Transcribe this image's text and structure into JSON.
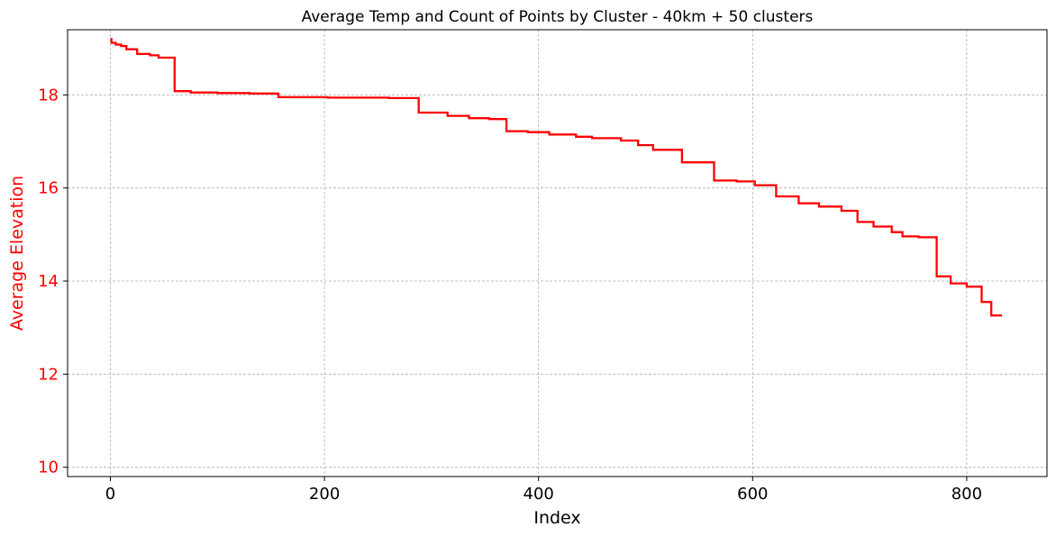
{
  "chart_data": {
    "type": "line",
    "title": "Average Temp and Count of Points by Cluster - 40km + 50 clusters",
    "xlabel": "Index",
    "ylabel": "Average Elevation",
    "xlim": [
      -40,
      875
    ],
    "ylim": [
      9.8,
      19.4
    ],
    "xticks": [
      0,
      200,
      400,
      600,
      800
    ],
    "yticks": [
      10,
      12,
      14,
      16,
      18
    ],
    "xtick_labels": [
      "0",
      "200",
      "400",
      "600",
      "800"
    ],
    "ytick_labels": [
      "10",
      "12",
      "14",
      "16",
      "18"
    ],
    "grid": true,
    "line_color": "#ff0000",
    "ylabel_color": "#ff0000",
    "ytick_color": "#ff0000",
    "series": [
      {
        "steps": [
          [
            0,
            19.2
          ],
          [
            1,
            19.12
          ],
          [
            5,
            19.08
          ],
          [
            10,
            19.05
          ],
          [
            15,
            18.98
          ],
          [
            25,
            18.88
          ],
          [
            37,
            18.85
          ],
          [
            45,
            18.8
          ],
          [
            60,
            18.08
          ],
          [
            75,
            18.05
          ],
          [
            100,
            18.04
          ],
          [
            130,
            18.03
          ],
          [
            157,
            17.95
          ],
          [
            203,
            17.94
          ],
          [
            260,
            17.93
          ],
          [
            288,
            17.62
          ],
          [
            315,
            17.55
          ],
          [
            335,
            17.5
          ],
          [
            354,
            17.48
          ],
          [
            370,
            17.22
          ],
          [
            390,
            17.2
          ],
          [
            410,
            17.15
          ],
          [
            435,
            17.1
          ],
          [
            450,
            17.07
          ],
          [
            477,
            17.02
          ],
          [
            493,
            16.92
          ],
          [
            507,
            16.82
          ],
          [
            534,
            16.55
          ],
          [
            564,
            16.16
          ],
          [
            585,
            16.14
          ],
          [
            602,
            16.06
          ],
          [
            622,
            15.82
          ],
          [
            643,
            15.67
          ],
          [
            662,
            15.6
          ],
          [
            683,
            15.51
          ],
          [
            698,
            15.27
          ],
          [
            713,
            15.17
          ],
          [
            730,
            15.05
          ],
          [
            740,
            14.96
          ],
          [
            755,
            14.94
          ],
          [
            772,
            14.1
          ],
          [
            785,
            13.95
          ],
          [
            800,
            13.88
          ],
          [
            814,
            13.55
          ],
          [
            823,
            13.26
          ],
          [
            833,
            13.26
          ]
        ]
      }
    ]
  }
}
